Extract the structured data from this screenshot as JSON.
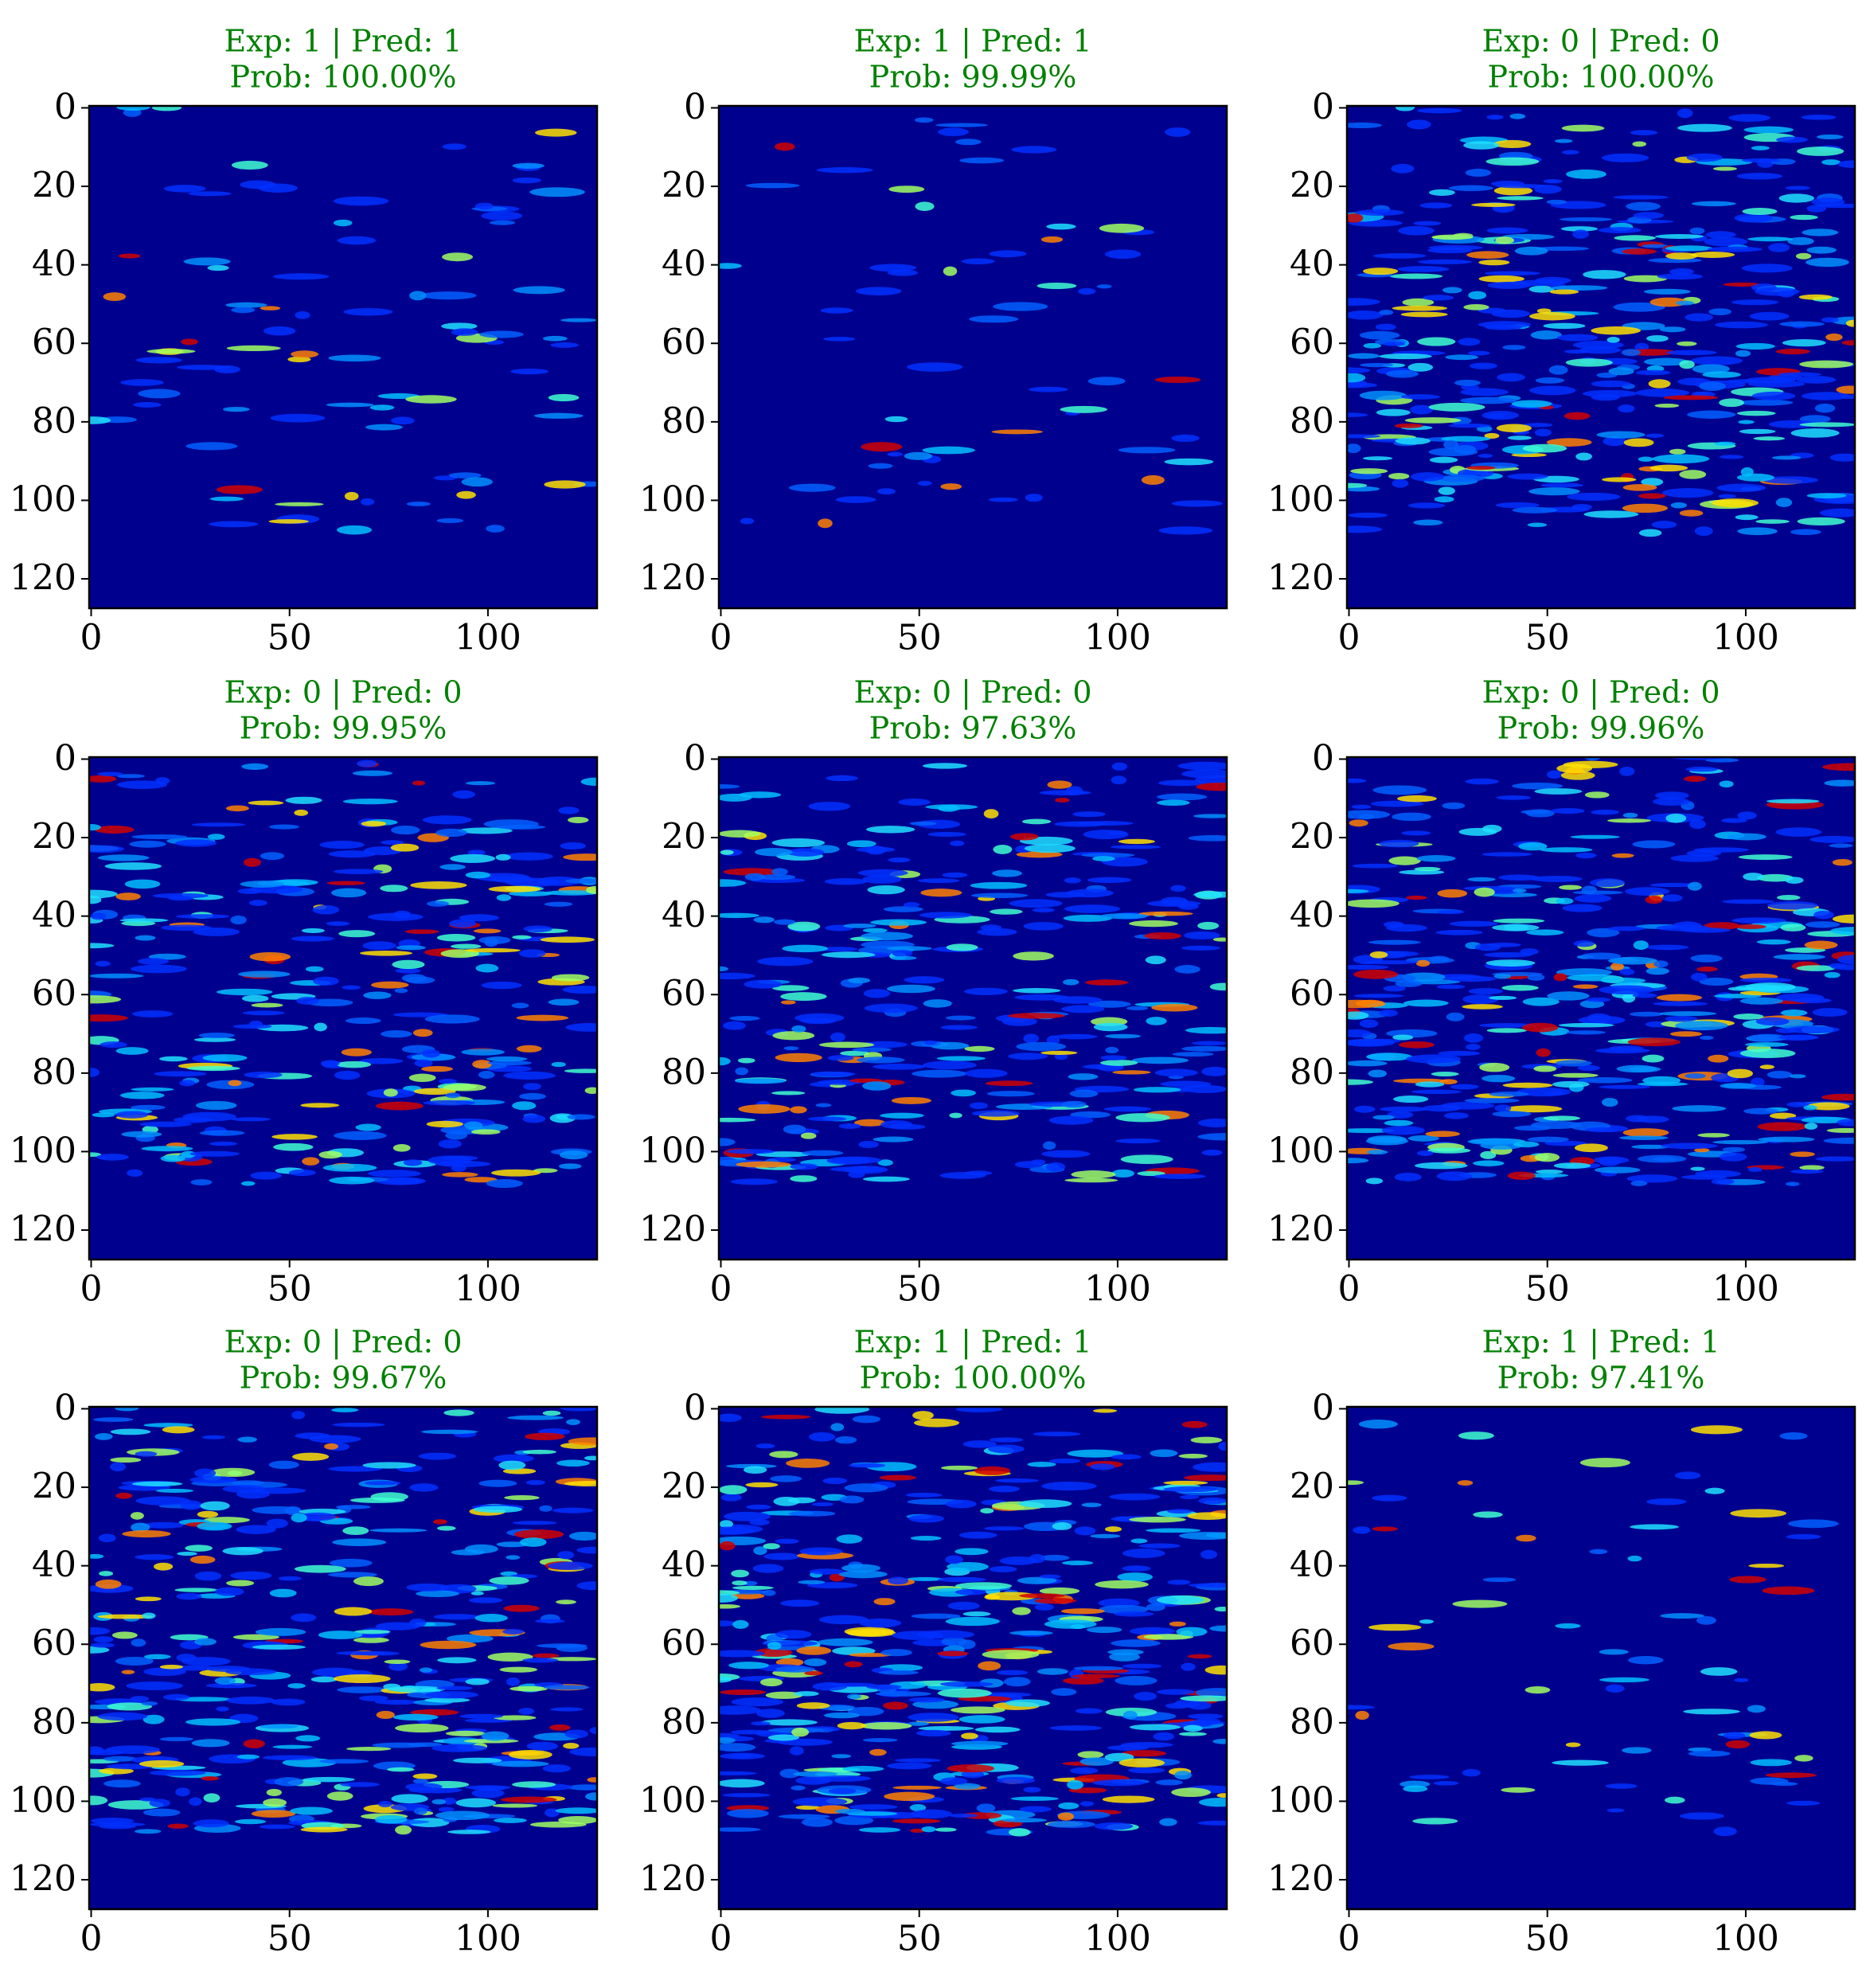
{
  "chart_data": [
    {
      "type": "heatmap",
      "title": "Exp: 1 | Pred: 1",
      "subtitle": "Prob: 100.00%",
      "title_color": "#008000",
      "colormap": "jet",
      "xlim": [
        -0.5,
        127.5
      ],
      "ylim": [
        127.5,
        -0.5
      ],
      "xticks": [
        0,
        50,
        100
      ],
      "yticks": [
        0,
        20,
        40,
        60,
        80,
        100,
        120
      ]
    },
    {
      "type": "heatmap",
      "title": "Exp: 1 | Pred: 1",
      "subtitle": "Prob: 99.99%",
      "title_color": "#008000",
      "colormap": "jet",
      "xlim": [
        -0.5,
        127.5
      ],
      "ylim": [
        127.5,
        -0.5
      ],
      "xticks": [
        0,
        50,
        100
      ],
      "yticks": [
        0,
        20,
        40,
        60,
        80,
        100,
        120
      ]
    },
    {
      "type": "heatmap",
      "title": "Exp: 0 | Pred: 0",
      "subtitle": "Prob: 100.00%",
      "title_color": "#008000",
      "colormap": "jet",
      "xlim": [
        -0.5,
        127.5
      ],
      "ylim": [
        127.5,
        -0.5
      ],
      "xticks": [
        0,
        50,
        100
      ],
      "yticks": [
        0,
        20,
        40,
        60,
        80,
        100,
        120
      ]
    },
    {
      "type": "heatmap",
      "title": "Exp: 0 | Pred: 0",
      "subtitle": "Prob: 99.95%",
      "title_color": "#008000",
      "colormap": "jet",
      "xlim": [
        -0.5,
        127.5
      ],
      "ylim": [
        127.5,
        -0.5
      ],
      "xticks": [
        0,
        50,
        100
      ],
      "yticks": [
        0,
        20,
        40,
        60,
        80,
        100,
        120
      ]
    },
    {
      "type": "heatmap",
      "title": "Exp: 0 | Pred: 0",
      "subtitle": "Prob: 97.63%",
      "title_color": "#008000",
      "colormap": "jet",
      "xlim": [
        -0.5,
        127.5
      ],
      "ylim": [
        127.5,
        -0.5
      ],
      "xticks": [
        0,
        50,
        100
      ],
      "yticks": [
        0,
        20,
        40,
        60,
        80,
        100,
        120
      ]
    },
    {
      "type": "heatmap",
      "title": "Exp: 0 | Pred: 0",
      "subtitle": "Prob: 99.96%",
      "title_color": "#008000",
      "colormap": "jet",
      "xlim": [
        -0.5,
        127.5
      ],
      "ylim": [
        127.5,
        -0.5
      ],
      "xticks": [
        0,
        50,
        100
      ],
      "yticks": [
        0,
        20,
        40,
        60,
        80,
        100,
        120
      ]
    },
    {
      "type": "heatmap",
      "title": "Exp: 0 | Pred: 0",
      "subtitle": "Prob: 99.67%",
      "title_color": "#008000",
      "colormap": "jet",
      "xlim": [
        -0.5,
        127.5
      ],
      "ylim": [
        127.5,
        -0.5
      ],
      "xticks": [
        0,
        50,
        100
      ],
      "yticks": [
        0,
        20,
        40,
        60,
        80,
        100,
        120
      ]
    },
    {
      "type": "heatmap",
      "title": "Exp: 1 | Pred: 1",
      "subtitle": "Prob: 100.00%",
      "title_color": "#008000",
      "colormap": "jet",
      "xlim": [
        -0.5,
        127.5
      ],
      "ylim": [
        127.5,
        -0.5
      ],
      "xticks": [
        0,
        50,
        100
      ],
      "yticks": [
        0,
        20,
        40,
        60,
        80,
        100,
        120
      ]
    },
    {
      "type": "heatmap",
      "title": "Exp: 1 | Pred: 1",
      "subtitle": "Prob: 97.41%",
      "title_color": "#008000",
      "colormap": "jet",
      "xlim": [
        -0.5,
        127.5
      ],
      "ylim": [
        127.5,
        -0.5
      ],
      "xticks": [
        0,
        50,
        100
      ],
      "yticks": [
        0,
        20,
        40,
        60,
        80,
        100,
        120
      ]
    }
  ]
}
